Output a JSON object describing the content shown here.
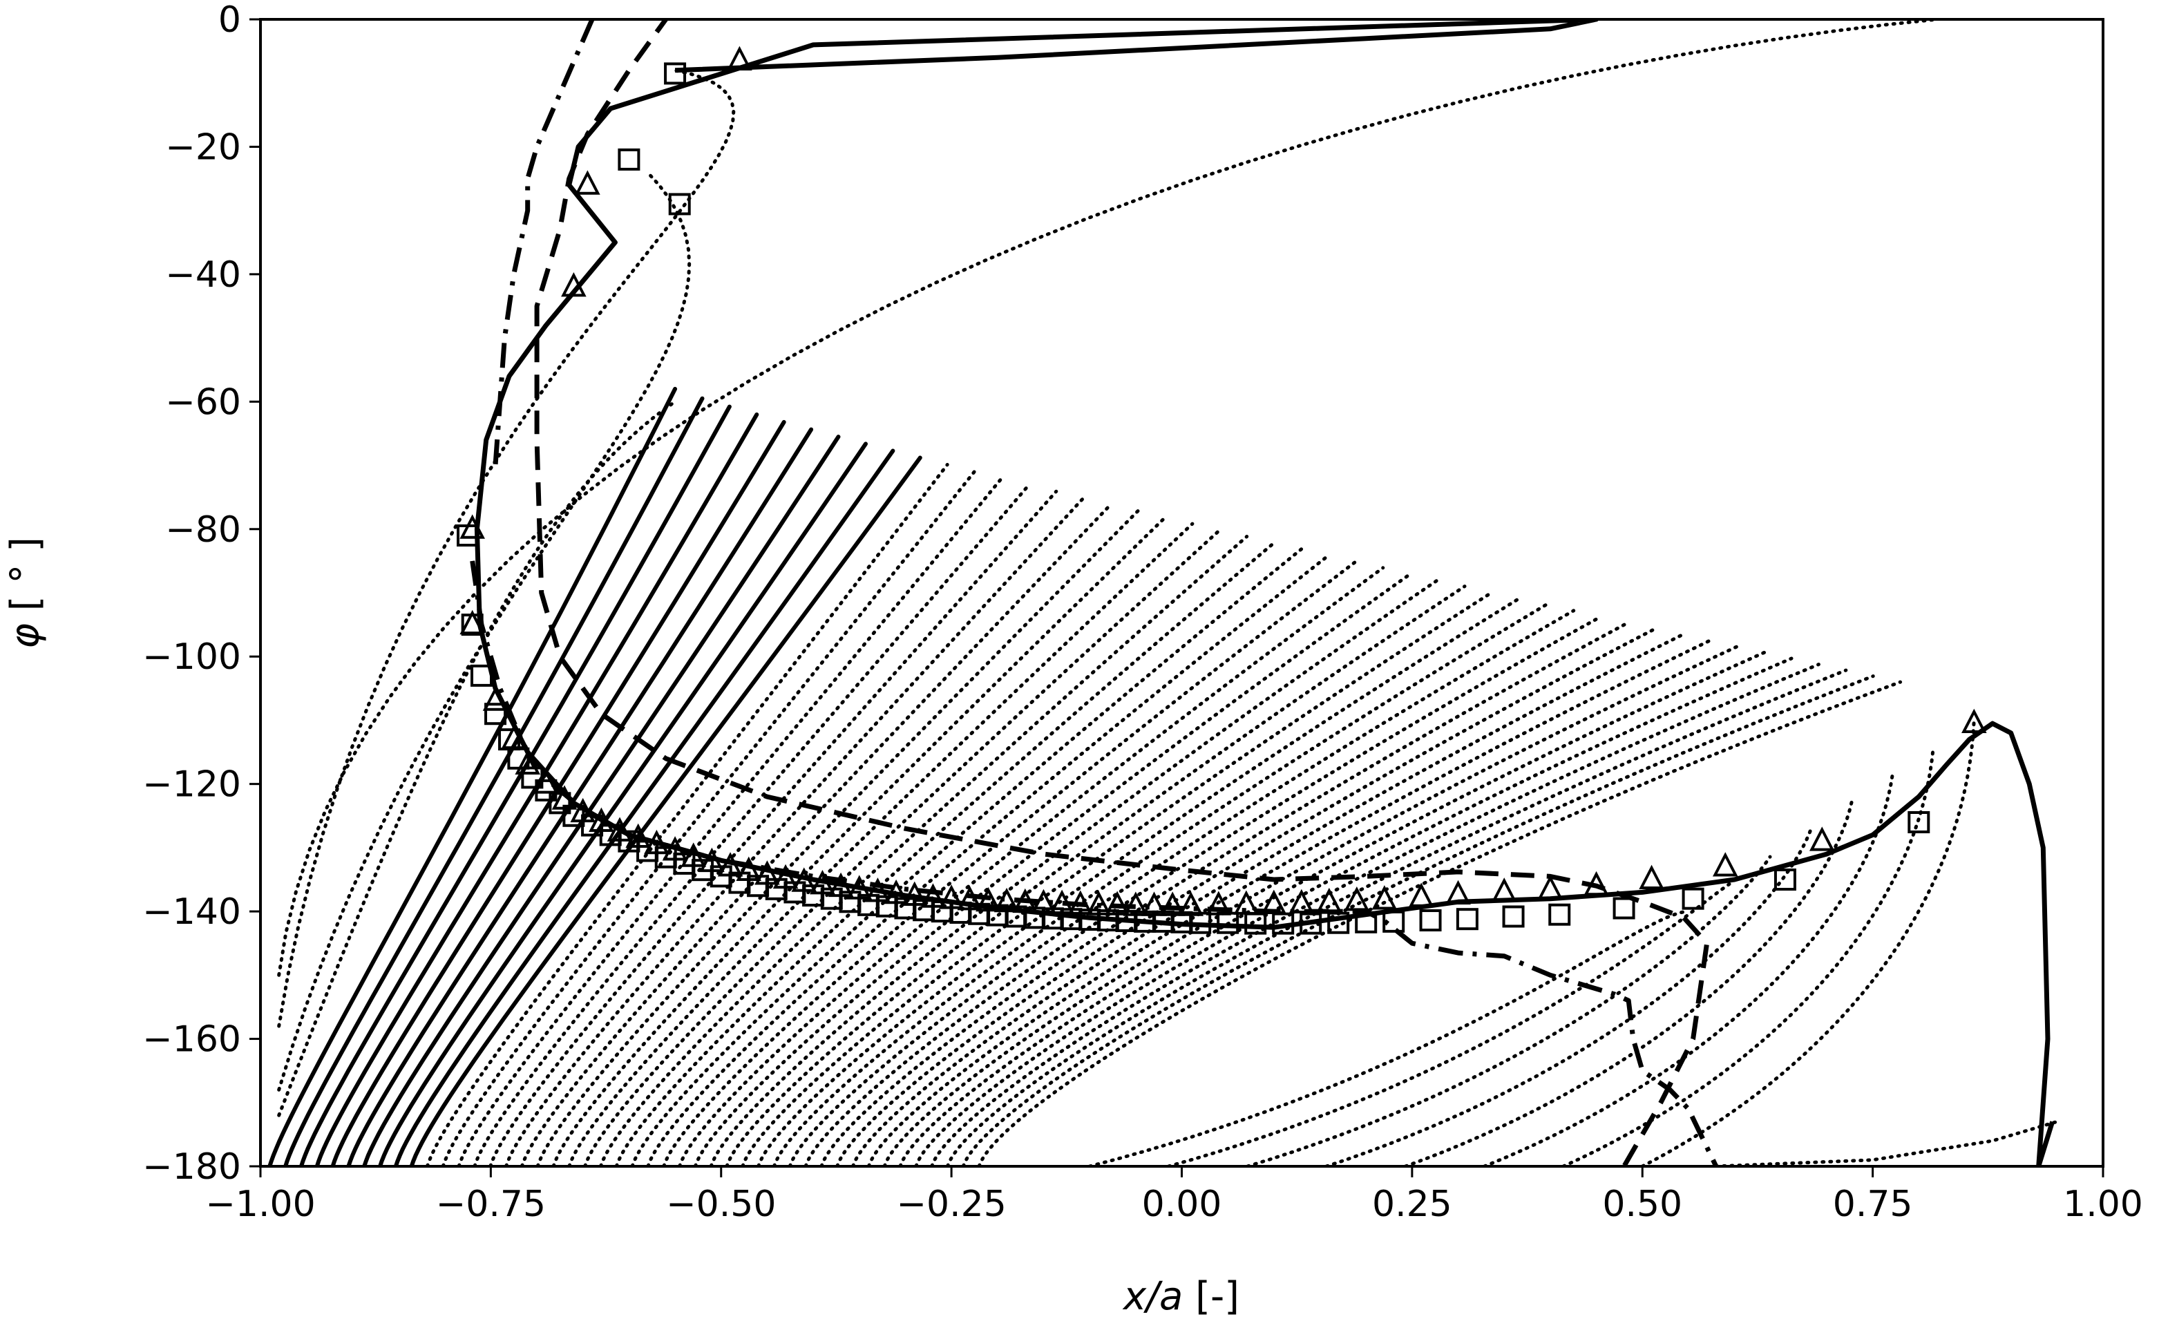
{
  "chart_data": {
    "type": "line",
    "xlabel_main": "x/a",
    "xlabel_unit": " [-]",
    "ylabel_main": "φ",
    "ylabel_unit": " [ ° ]",
    "xlim": [
      -1.0,
      1.0
    ],
    "ylim": [
      -180,
      0
    ],
    "xticks": [
      -1.0,
      -0.75,
      -0.5,
      -0.25,
      0.0,
      0.25,
      0.5,
      0.75,
      1.0
    ],
    "xtick_labels": [
      "−1.00",
      "−0.75",
      "−0.50",
      "−0.25",
      "0.00",
      "0.25",
      "0.50",
      "0.75",
      "1.00"
    ],
    "yticks": [
      0,
      -20,
      -40,
      -60,
      -80,
      -100,
      -120,
      -140,
      -160,
      -180
    ],
    "ytick_labels": [
      "0",
      "−20",
      "−40",
      "−60",
      "−80",
      "−100",
      "−120",
      "−140",
      "−160",
      "−180"
    ],
    "grid": false,
    "series": [
      {
        "style": "solid",
        "x": [
          -0.55,
          -0.2,
          0.2,
          0.4,
          0.45,
          -0.4,
          -0.62,
          -0.655,
          -0.665,
          -0.615,
          -0.69,
          -0.73,
          -0.755,
          -0.765,
          -0.762,
          -0.745,
          -0.71,
          -0.66,
          -0.6,
          -0.5,
          -0.4,
          -0.3,
          -0.2,
          -0.1,
          0.0,
          0.1,
          0.2,
          0.3,
          0.4,
          0.5,
          0.6,
          0.7,
          0.75,
          0.8,
          0.83,
          0.855,
          0.88,
          0.9,
          0.92,
          0.935,
          0.94,
          0.93,
          0.945
        ],
        "y": [
          -8,
          -6,
          -3,
          -1.5,
          0,
          -4,
          -14,
          -20,
          -26,
          -35,
          -48,
          -56,
          -66,
          -80,
          -95,
          -105,
          -115,
          -123,
          -128,
          -132,
          -135,
          -137.5,
          -139.5,
          -141,
          -142,
          -142.5,
          -140.5,
          -138.5,
          -138,
          -137,
          -135,
          -131,
          -128,
          -122,
          -117,
          -113,
          -110.5,
          -112,
          -120,
          -130,
          -160,
          -180,
          -173
        ]
      },
      {
        "style": "dashed",
        "x": [
          -0.555,
          -0.6,
          -0.645,
          -0.665,
          -0.675,
          -0.7,
          -0.7,
          -0.695,
          -0.675,
          -0.63,
          -0.56,
          -0.45,
          -0.3,
          -0.15,
          0.0,
          0.1,
          0.2,
          0.3,
          0.4,
          0.45,
          0.5,
          0.545,
          0.57,
          0.555,
          0.52,
          0.48
        ],
        "y": [
          1,
          -8,
          -18,
          -25,
          -33,
          -45,
          -66,
          -90,
          -100,
          -109,
          -116,
          -122,
          -127,
          -131,
          -133.5,
          -135,
          -134.5,
          -133.8,
          -134.5,
          -136,
          -138.5,
          -141,
          -145,
          -160,
          -170,
          -180
        ]
      },
      {
        "style": "dashdot",
        "x": [
          -0.64,
          -0.67,
          -0.7,
          -0.71,
          -0.71,
          -0.725,
          -0.735,
          -0.74,
          -0.745
        ],
        "y": [
          0,
          -10,
          -20,
          -25,
          -30,
          -40,
          -50,
          -60,
          -70
        ]
      },
      {
        "style": "dashdot",
        "x": [
          -0.77,
          -0.76,
          -0.74,
          -0.72,
          -0.7,
          -0.65,
          -0.6,
          -0.5,
          -0.4,
          -0.3,
          -0.2,
          -0.1,
          0.0,
          0.1,
          0.2,
          0.22,
          0.25,
          0.3,
          0.35,
          0.4,
          0.47,
          0.485,
          0.49,
          0.5,
          0.53,
          0.55,
          0.58
        ],
        "y": [
          -85,
          -95,
          -105,
          -112,
          -118,
          -124,
          -128,
          -132,
          -134.5,
          -136.5,
          -138,
          -139,
          -139.5,
          -140,
          -140,
          -141.5,
          -145,
          -146.5,
          -147,
          -150,
          -153,
          -154,
          -160,
          -165,
          -168,
          -171,
          -180
        ]
      },
      {
        "style": "markers-square",
        "x": [
          -0.55,
          -0.6,
          -0.545,
          -0.775,
          -0.77,
          -0.76,
          -0.745,
          -0.73,
          -0.72,
          -0.705,
          -0.69,
          -0.675,
          -0.66,
          -0.64,
          -0.62,
          -0.6,
          -0.58,
          -0.56,
          -0.54,
          -0.52,
          -0.5,
          -0.48,
          -0.46,
          -0.44,
          -0.42,
          -0.4,
          -0.38,
          -0.36,
          -0.34,
          -0.32,
          -0.3,
          -0.28,
          -0.26,
          -0.24,
          -0.22,
          -0.2,
          -0.18,
          -0.16,
          -0.14,
          -0.12,
          -0.1,
          -0.08,
          -0.06,
          -0.04,
          -0.02,
          0.0,
          0.02,
          0.05,
          0.08,
          0.11,
          0.14,
          0.17,
          0.2,
          0.23,
          0.27,
          0.31,
          0.36,
          0.41,
          0.48,
          0.555,
          0.655,
          0.8
        ],
        "y": [
          -8.5,
          -22,
          -29,
          -81,
          -95,
          -103,
          -109,
          -113,
          -116,
          -119,
          -121,
          -123,
          -125,
          -126.5,
          -128,
          -129,
          -130.5,
          -131.5,
          -132.5,
          -133.5,
          -134.5,
          -135.5,
          -136,
          -136.5,
          -137,
          -137.5,
          -138,
          -138.5,
          -139,
          -139.2,
          -139.5,
          -139.8,
          -140,
          -140.2,
          -140.4,
          -140.6,
          -140.8,
          -141,
          -141.1,
          -141.2,
          -141.3,
          -141.4,
          -141.5,
          -141.6,
          -141.6,
          -141.7,
          -141.8,
          -141.8,
          -141.9,
          -141.9,
          -141.9,
          -141.8,
          -141.7,
          -141.6,
          -141.4,
          -141.2,
          -140.8,
          -140.5,
          -139.5,
          -138,
          -135,
          -126
        ]
      },
      {
        "style": "markers-triangle",
        "x": [
          -0.48,
          -0.645,
          -0.66,
          -0.77,
          -0.77,
          -0.745,
          -0.725,
          -0.71,
          -0.69,
          -0.67,
          -0.65,
          -0.63,
          -0.61,
          -0.59,
          -0.57,
          -0.55,
          -0.53,
          -0.51,
          -0.49,
          -0.47,
          -0.45,
          -0.43,
          -0.41,
          -0.39,
          -0.37,
          -0.35,
          -0.33,
          -0.31,
          -0.29,
          -0.27,
          -0.25,
          -0.23,
          -0.21,
          -0.19,
          -0.17,
          -0.15,
          -0.13,
          -0.11,
          -0.09,
          -0.07,
          -0.05,
          -0.03,
          -0.01,
          0.01,
          0.04,
          0.07,
          0.1,
          0.13,
          0.16,
          0.19,
          0.22,
          0.26,
          0.3,
          0.35,
          0.4,
          0.45,
          0.51,
          0.59,
          0.695,
          0.86
        ],
        "y": [
          -6.5,
          -26,
          -42,
          -80,
          -95,
          -107,
          -113,
          -117,
          -120,
          -122.5,
          -124.5,
          -126,
          -127.5,
          -128.5,
          -129.5,
          -130.5,
          -131.5,
          -132.3,
          -133,
          -133.7,
          -134.3,
          -134.9,
          -135.4,
          -135.8,
          -136.2,
          -136.6,
          -137,
          -137.3,
          -137.6,
          -137.9,
          -138.1,
          -138.3,
          -138.5,
          -138.6,
          -138.7,
          -138.8,
          -138.9,
          -139,
          -139.1,
          -139.1,
          -139.2,
          -139.2,
          -139.2,
          -139.2,
          -139.1,
          -139,
          -138.9,
          -138.8,
          -138.6,
          -138.4,
          -138.2,
          -137.8,
          -137.4,
          -137,
          -136.6,
          -136,
          -135,
          -133,
          -129,
          -110.5
        ]
      }
    ]
  }
}
